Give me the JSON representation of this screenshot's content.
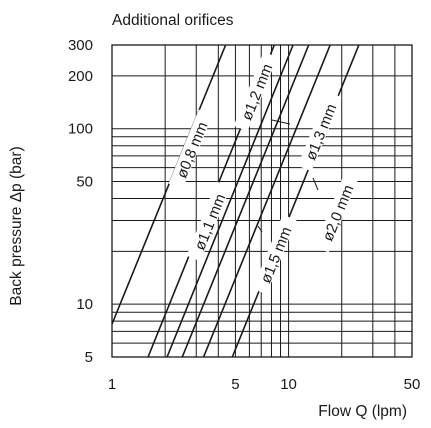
{
  "chart_data": {
    "type": "line",
    "title": "Additional orifices",
    "xlabel": "Flow Q (lpm)",
    "ylabel": "Back pressure  Δp (bar)",
    "x_scale": "log",
    "y_scale": "log",
    "xlim": [
      1,
      50
    ],
    "ylim": [
      5,
      300
    ],
    "x_ticks": [
      1,
      5,
      10,
      50
    ],
    "y_ticks": [
      5,
      10,
      50,
      100,
      200,
      300
    ],
    "x_grid": [
      1,
      2,
      3,
      4,
      5,
      6,
      7,
      8,
      9,
      10,
      20,
      30,
      40,
      50
    ],
    "y_grid": [
      5,
      6,
      7,
      8,
      9,
      10,
      20,
      30,
      40,
      50,
      60,
      70,
      80,
      90,
      100,
      200,
      300
    ],
    "grid": true,
    "series": [
      {
        "name": "ø0,8 mm",
        "points": [
          [
            1,
            7.7
          ],
          [
            4.4,
            300
          ]
        ]
      },
      {
        "name": "ø1,1 mm",
        "points": [
          [
            1.6,
            5
          ],
          [
            8.3,
            300
          ]
        ]
      },
      {
        "name": "ø1,2 mm",
        "points": [
          [
            2.05,
            5
          ],
          [
            10.6,
            300
          ]
        ]
      },
      {
        "name": "ø1,3 mm",
        "points": [
          [
            2.5,
            5
          ],
          [
            13.0,
            300
          ]
        ]
      },
      {
        "name": "ø1,5 mm",
        "points": [
          [
            3.3,
            5
          ],
          [
            17.2,
            300
          ]
        ]
      },
      {
        "name": "ø2,0 mm",
        "points": [
          [
            4.8,
            5
          ],
          [
            25.0,
            300
          ]
        ]
      }
    ],
    "annotations": [
      {
        "series": 0,
        "text": "ø0,8  mm"
      },
      {
        "series": 1,
        "text": "ø1,1  mm"
      },
      {
        "series": 2,
        "text": "ø1,2  mm"
      },
      {
        "series": 3,
        "text": "ø1,3  mm"
      },
      {
        "series": 4,
        "text": "ø1,5  mm"
      },
      {
        "series": 5,
        "text": "ø2,0  mm"
      }
    ]
  }
}
